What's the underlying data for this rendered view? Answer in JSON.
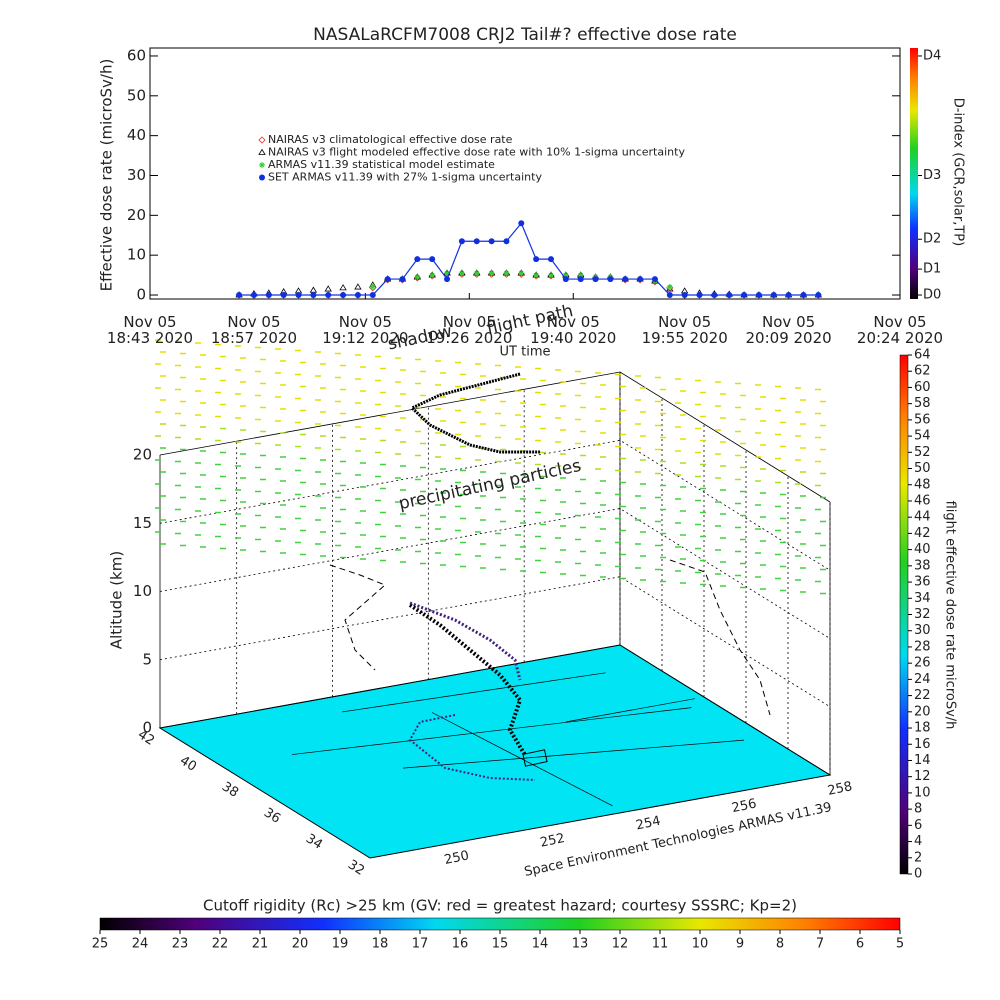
{
  "chart_data": [
    {
      "type": "line",
      "title": "NASALaRCFM7008  CRJ2 Tail#? effective dose rate",
      "y_label": "Effective dose rate (microSv/h)",
      "x_label": "UT time",
      "y2_label": "D-index (GCR,solar,TP)",
      "xlim": [
        1123,
        1224
      ],
      "xticks": [
        {
          "value": 1123,
          "label": "Nov 05 18:43 2020"
        },
        {
          "value": 1137,
          "label": "Nov 05 18:57 2020"
        },
        {
          "value": 1152,
          "label": "Nov 05 19:12 2020"
        },
        {
          "value": 1166,
          "label": "Nov 05 19:26 2020"
        },
        {
          "value": 1180,
          "label": "Nov 05 19:40 2020"
        },
        {
          "value": 1195,
          "label": "Nov 05 19:55 2020"
        },
        {
          "value": 1209,
          "label": "Nov 05 20:09 2020"
        },
        {
          "value": 1224,
          "label": "Nov 05 20:24 2020"
        }
      ],
      "ylim": [
        -1,
        62
      ],
      "yticks": [
        0,
        10,
        20,
        30,
        40,
        50,
        60
      ],
      "y2lim": [
        -1,
        62
      ],
      "y2ticks": [
        {
          "value": 0,
          "label": "D0"
        },
        {
          "value": 6.5,
          "label": "D1"
        },
        {
          "value": 14,
          "label": "D2"
        },
        {
          "value": 30,
          "label": "D3"
        },
        {
          "value": 60,
          "label": "D4"
        }
      ],
      "x": [
        1135,
        1137,
        1139,
        1141,
        1143,
        1145,
        1147,
        1149,
        1151,
        1153,
        1155,
        1157,
        1159,
        1161,
        1163,
        1165,
        1167,
        1169,
        1171,
        1173,
        1175,
        1177,
        1179,
        1181,
        1183,
        1185,
        1187,
        1189,
        1191,
        1193,
        1195,
        1197,
        1199,
        1201,
        1203,
        1205,
        1207,
        1209,
        1211,
        1213
      ],
      "series": [
        {
          "name": "NAIRAS v3 climatological effective dose rate",
          "color": "#e03030",
          "marker": "diamond",
          "values": [
            0,
            0,
            0,
            0,
            0,
            0,
            0,
            0,
            0,
            1.8,
            3.8,
            3.8,
            4.3,
            4.8,
            5.2,
            5.2,
            5.2,
            5.2,
            5.2,
            5.2,
            4.8,
            4.8,
            4.8,
            4.8,
            4.3,
            4.3,
            3.8,
            3.8,
            3.3,
            1.8,
            0,
            0,
            0,
            0,
            0,
            0,
            0,
            0,
            0,
            0
          ]
        },
        {
          "name": "NAIRAS v3 flight modeled effective dose rate with 10% 1-sigma uncertainty",
          "color": "#000000",
          "marker": "triangle",
          "values": [
            0,
            0.3,
            0.5,
            0.8,
            1,
            1.2,
            1.5,
            1.8,
            2,
            2.5,
            4,
            4,
            4.5,
            5,
            5.5,
            5.5,
            5.5,
            5.5,
            5.5,
            5.5,
            5,
            5,
            5,
            5,
            4.5,
            4.5,
            4,
            4,
            3.5,
            1.5,
            1,
            0.5,
            0.3,
            0.2,
            0,
            0,
            0,
            0,
            0,
            0
          ]
        },
        {
          "name": "ARMAS v11.39 statistical model estimate",
          "color": "#30d030",
          "marker": "star",
          "values": [
            0,
            0,
            0,
            0,
            0,
            0,
            0,
            0,
            0,
            2,
            4,
            4,
            4.5,
            5,
            5.5,
            5.5,
            5.5,
            5.5,
            5.5,
            5.5,
            5,
            5,
            5,
            5,
            4.5,
            4.5,
            4,
            4,
            3.5,
            2,
            0,
            0,
            0,
            0,
            0,
            0,
            0,
            0,
            0,
            0
          ]
        },
        {
          "name": "SET ARMAS v11.39 with 27% 1-sigma uncertainty",
          "color": "#1030e0",
          "marker": "circle",
          "values": [
            0,
            0,
            0,
            0,
            0,
            0,
            0,
            0,
            0,
            0,
            4,
            4,
            9,
            9,
            4,
            13.5,
            13.5,
            13.5,
            13.5,
            18,
            9,
            9,
            4,
            4,
            4,
            4,
            4,
            4,
            4,
            0,
            0,
            0,
            0,
            0,
            0,
            0,
            0,
            0,
            0,
            0
          ]
        }
      ]
    },
    {
      "type": "surface3d",
      "z_label": "Altitude (km)",
      "zlim": [
        0,
        20
      ],
      "zticks": [
        0,
        5,
        10,
        15,
        20
      ],
      "latlim": [
        42,
        32
      ],
      "lat_ticks": [
        42,
        40,
        38,
        36,
        34,
        32
      ],
      "lonlim": [
        248.4,
        258
      ],
      "lon_ticks": [
        250,
        252,
        254,
        256,
        258
      ],
      "annotations": [
        "precipitating particles",
        "flight path",
        "shadow"
      ],
      "credit": "Space Environment Technologies ARMAS v11.39"
    },
    {
      "type": "colorbar",
      "label": "flight effective dose rate microSv/h",
      "lim": [
        0,
        64
      ],
      "ticks": [
        0,
        2,
        4,
        6,
        8,
        10,
        12,
        14,
        16,
        18,
        20,
        22,
        24,
        26,
        28,
        30,
        32,
        34,
        36,
        38,
        40,
        42,
        44,
        46,
        48,
        50,
        52,
        54,
        56,
        58,
        60,
        62,
        64
      ]
    },
    {
      "type": "colorbar",
      "label": "Cutoff rigidity (Rc) >25 km (GV: red = greatest hazard; courtesy SSSRC; Kp=2)",
      "lim": [
        25,
        5
      ],
      "ticks": [
        25,
        24,
        23,
        22,
        21,
        20,
        19,
        18,
        17,
        16,
        15,
        14,
        13,
        12,
        11,
        10,
        9,
        8,
        7,
        6,
        5
      ]
    }
  ]
}
